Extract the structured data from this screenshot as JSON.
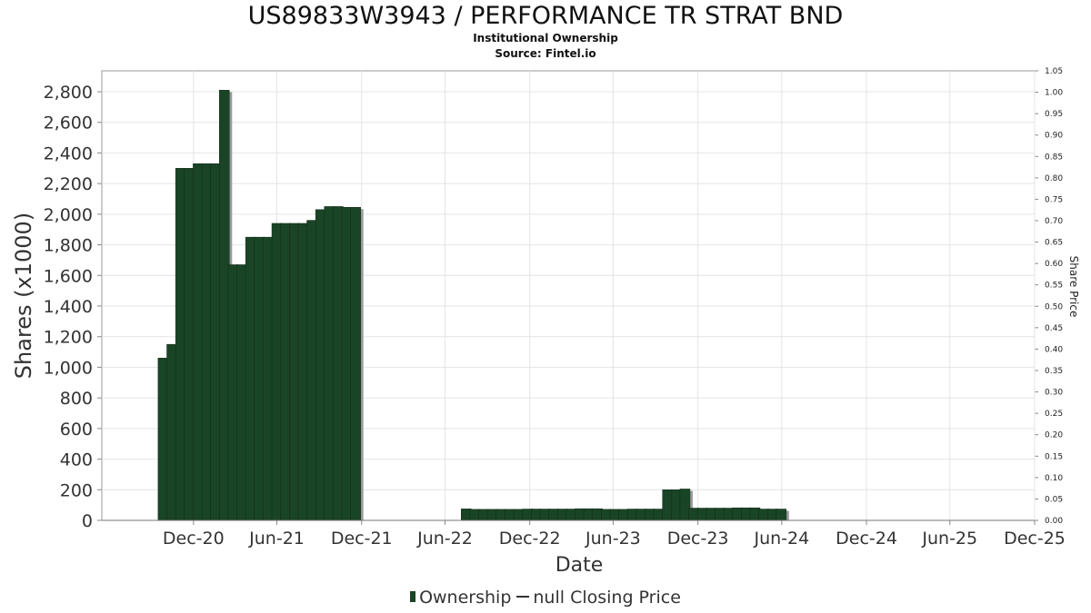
{
  "chart_data": {
    "type": "bar",
    "title": "US89833W3943 / PERFORMANCE TR STRAT BND",
    "subtitle": "Institutional Ownership",
    "source": "Source: Fintel.io",
    "xlabel": "Date",
    "ylabel": "Shares (x1000)",
    "y2label": "Share Price",
    "ylim": [
      0,
      2820
    ],
    "y2lim": [
      0,
      1.05
    ],
    "yticks": [
      "0",
      "200",
      "400",
      "600",
      "800",
      "1,000",
      "1,200",
      "1,400",
      "1,600",
      "1,800",
      "2,000",
      "2,200",
      "2,400",
      "2,600",
      "2,800"
    ],
    "y2ticks": [
      "0.00",
      "0.05",
      "0.10",
      "0.15",
      "0.20",
      "0.25",
      "0.30",
      "0.35",
      "0.40",
      "0.45",
      "0.50",
      "0.55",
      "0.60",
      "0.65",
      "0.70",
      "0.75",
      "0.80",
      "0.85",
      "0.90",
      "0.95",
      "1.00",
      "1.05"
    ],
    "xlim": [
      "2020-06-15",
      "2025-12-31"
    ],
    "xticks": [
      {
        "date": "2020-12-31",
        "label": "Dec-20"
      },
      {
        "date": "2021-06-30",
        "label": "Jun-21"
      },
      {
        "date": "2021-12-31",
        "label": "Dec-21"
      },
      {
        "date": "2022-06-30",
        "label": "Jun-22"
      },
      {
        "date": "2022-12-31",
        "label": "Dec-22"
      },
      {
        "date": "2023-06-30",
        "label": "Jun-23"
      },
      {
        "date": "2023-12-31",
        "label": "Dec-23"
      },
      {
        "date": "2024-06-30",
        "label": "Jun-24"
      },
      {
        "date": "2024-12-31",
        "label": "Dec-24"
      },
      {
        "date": "2025-06-30",
        "label": "Jun-25"
      },
      {
        "date": "2025-12-31",
        "label": "Dec-25"
      }
    ],
    "grid": true,
    "legend_position": "bottom",
    "series": [
      {
        "name": "Ownership",
        "color": "#1a4426",
        "points": [
          {
            "date": "2020-10-26",
            "value": 1060
          },
          {
            "date": "2020-11-14",
            "value": 1150
          },
          {
            "date": "2020-12-03",
            "value": 2300
          },
          {
            "date": "2020-12-22",
            "value": 2300
          },
          {
            "date": "2021-01-10",
            "value": 2330
          },
          {
            "date": "2021-01-29",
            "value": 2330
          },
          {
            "date": "2021-02-17",
            "value": 2330
          },
          {
            "date": "2021-03-08",
            "value": 2810
          },
          {
            "date": "2021-03-27",
            "value": 1670
          },
          {
            "date": "2021-04-15",
            "value": 1670
          },
          {
            "date": "2021-05-04",
            "value": 1850
          },
          {
            "date": "2021-05-23",
            "value": 1850
          },
          {
            "date": "2021-06-11",
            "value": 1850
          },
          {
            "date": "2021-06-30",
            "value": 1940
          },
          {
            "date": "2021-07-19",
            "value": 1940
          },
          {
            "date": "2021-08-07",
            "value": 1940
          },
          {
            "date": "2021-08-26",
            "value": 1940
          },
          {
            "date": "2021-09-14",
            "value": 1960
          },
          {
            "date": "2021-10-03",
            "value": 2030
          },
          {
            "date": "2021-10-22",
            "value": 2050
          },
          {
            "date": "2021-11-10",
            "value": 2050
          },
          {
            "date": "2021-11-29",
            "value": 2045
          },
          {
            "date": "2021-12-18",
            "value": 2045
          },
          {
            "date": "2022-08-15",
            "value": 75
          },
          {
            "date": "2022-09-03",
            "value": 72
          },
          {
            "date": "2022-09-22",
            "value": 72
          },
          {
            "date": "2022-10-11",
            "value": 72
          },
          {
            "date": "2022-10-30",
            "value": 72
          },
          {
            "date": "2022-11-18",
            "value": 72
          },
          {
            "date": "2022-12-07",
            "value": 72
          },
          {
            "date": "2022-12-26",
            "value": 74
          },
          {
            "date": "2023-01-14",
            "value": 74
          },
          {
            "date": "2023-02-02",
            "value": 74
          },
          {
            "date": "2023-02-21",
            "value": 74
          },
          {
            "date": "2023-03-12",
            "value": 74
          },
          {
            "date": "2023-03-31",
            "value": 74
          },
          {
            "date": "2023-04-19",
            "value": 76
          },
          {
            "date": "2023-05-08",
            "value": 76
          },
          {
            "date": "2023-05-27",
            "value": 76
          },
          {
            "date": "2023-06-15",
            "value": 72
          },
          {
            "date": "2023-07-04",
            "value": 72
          },
          {
            "date": "2023-07-23",
            "value": 72
          },
          {
            "date": "2023-08-11",
            "value": 74
          },
          {
            "date": "2023-08-30",
            "value": 74
          },
          {
            "date": "2023-09-18",
            "value": 74
          },
          {
            "date": "2023-10-07",
            "value": 74
          },
          {
            "date": "2023-10-26",
            "value": 200
          },
          {
            "date": "2023-11-14",
            "value": 200
          },
          {
            "date": "2023-12-03",
            "value": 205
          },
          {
            "date": "2023-12-22",
            "value": 80
          },
          {
            "date": "2024-01-10",
            "value": 80
          },
          {
            "date": "2024-01-29",
            "value": 80
          },
          {
            "date": "2024-02-17",
            "value": 80
          },
          {
            "date": "2024-03-07",
            "value": 80
          },
          {
            "date": "2024-03-26",
            "value": 82
          },
          {
            "date": "2024-04-14",
            "value": 82
          },
          {
            "date": "2024-05-03",
            "value": 82
          },
          {
            "date": "2024-05-22",
            "value": 74
          },
          {
            "date": "2024-06-10",
            "value": 74
          },
          {
            "date": "2024-06-29",
            "value": 74
          }
        ]
      },
      {
        "name": "null Closing Price",
        "color": "#333333",
        "points": []
      }
    ]
  }
}
